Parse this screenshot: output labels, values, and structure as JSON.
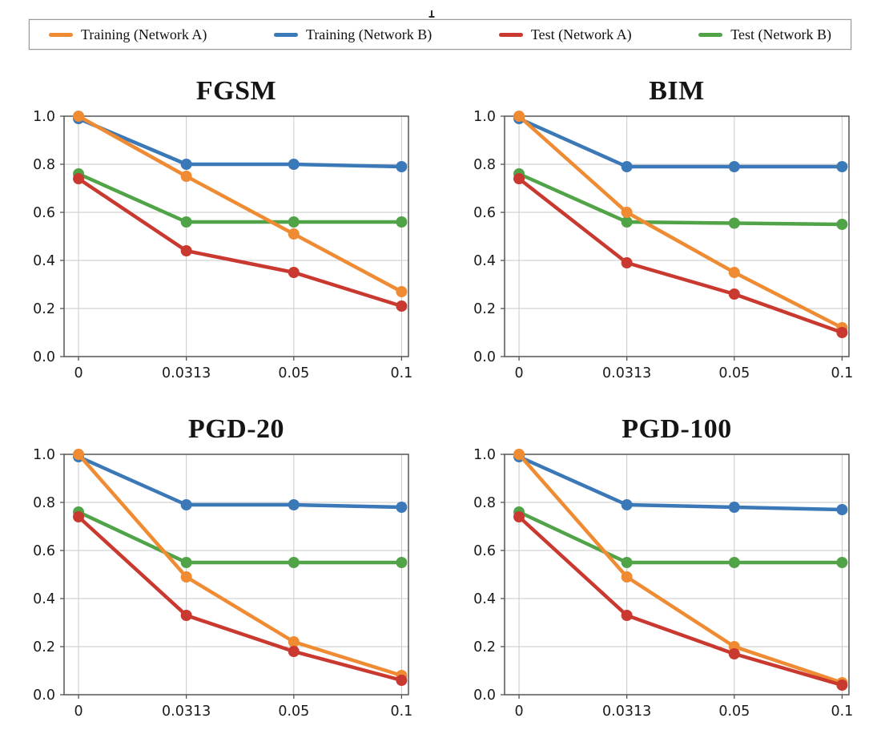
{
  "legend": {
    "position": "top",
    "items": [
      {
        "label": "Training (Network A)",
        "color": "#EE8B33"
      },
      {
        "label": "Training (Network B)",
        "color": "#3B78B7"
      },
      {
        "label": "Test (Network A)",
        "color": "#C9392F"
      },
      {
        "label": "Test (Network B)",
        "color": "#50A347"
      }
    ]
  },
  "chart_data": [
    {
      "type": "line",
      "title": "FGSM",
      "categories": [
        "0",
        "0.0313",
        "0.05",
        "0.1"
      ],
      "xlabel": "",
      "ylabel": "",
      "ylim": [
        0.0,
        1.0
      ],
      "yticklabels": [
        "0.0",
        "0.2",
        "0.4",
        "0.6",
        "0.8",
        "1.0"
      ],
      "grid": true,
      "legend_position": "shared-top",
      "series": [
        {
          "name": "Training (Network B)",
          "color": "#3B78B7",
          "values": [
            0.99,
            0.8,
            0.8,
            0.79
          ]
        },
        {
          "name": "Test (Network B)",
          "color": "#50A347",
          "values": [
            0.76,
            0.56,
            0.56,
            0.56
          ]
        },
        {
          "name": "Training (Network A)",
          "color": "#EE8B33",
          "values": [
            1.0,
            0.75,
            0.51,
            0.27
          ]
        },
        {
          "name": "Test (Network A)",
          "color": "#C9392F",
          "values": [
            0.74,
            0.44,
            0.35,
            0.21
          ]
        }
      ]
    },
    {
      "type": "line",
      "title": "BIM",
      "categories": [
        "0",
        "0.0313",
        "0.05",
        "0.1"
      ],
      "xlabel": "",
      "ylabel": "",
      "ylim": [
        0.0,
        1.0
      ],
      "yticklabels": [
        "0.0",
        "0.2",
        "0.4",
        "0.6",
        "0.8",
        "1.0"
      ],
      "grid": true,
      "legend_position": "shared-top",
      "series": [
        {
          "name": "Training (Network B)",
          "color": "#3B78B7",
          "values": [
            0.99,
            0.79,
            0.79,
            0.79
          ]
        },
        {
          "name": "Test (Network B)",
          "color": "#50A347",
          "values": [
            0.76,
            0.56,
            0.555,
            0.55
          ]
        },
        {
          "name": "Training (Network A)",
          "color": "#EE8B33",
          "values": [
            1.0,
            0.6,
            0.35,
            0.12
          ]
        },
        {
          "name": "Test (Network A)",
          "color": "#C9392F",
          "values": [
            0.74,
            0.39,
            0.26,
            0.1
          ]
        }
      ]
    },
    {
      "type": "line",
      "title": "PGD-20",
      "categories": [
        "0",
        "0.0313",
        "0.05",
        "0.1"
      ],
      "xlabel": "",
      "ylabel": "",
      "ylim": [
        0.0,
        1.0
      ],
      "yticklabels": [
        "0.0",
        "0.2",
        "0.4",
        "0.6",
        "0.8",
        "1.0"
      ],
      "grid": true,
      "legend_position": "shared-top",
      "series": [
        {
          "name": "Training (Network B)",
          "color": "#3B78B7",
          "values": [
            0.99,
            0.79,
            0.79,
            0.78
          ]
        },
        {
          "name": "Test (Network B)",
          "color": "#50A347",
          "values": [
            0.76,
            0.55,
            0.55,
            0.55
          ]
        },
        {
          "name": "Training (Network A)",
          "color": "#EE8B33",
          "values": [
            1.0,
            0.49,
            0.22,
            0.08
          ]
        },
        {
          "name": "Test (Network A)",
          "color": "#C9392F",
          "values": [
            0.74,
            0.33,
            0.18,
            0.06
          ]
        }
      ]
    },
    {
      "type": "line",
      "title": "PGD-100",
      "categories": [
        "0",
        "0.0313",
        "0.05",
        "0.1"
      ],
      "xlabel": "",
      "ylabel": "",
      "ylim": [
        0.0,
        1.0
      ],
      "yticklabels": [
        "0.0",
        "0.2",
        "0.4",
        "0.6",
        "0.8",
        "1.0"
      ],
      "grid": true,
      "legend_position": "shared-top",
      "series": [
        {
          "name": "Training (Network B)",
          "color": "#3B78B7",
          "values": [
            0.99,
            0.79,
            0.78,
            0.77
          ]
        },
        {
          "name": "Test (Network B)",
          "color": "#50A347",
          "values": [
            0.76,
            0.55,
            0.55,
            0.55
          ]
        },
        {
          "name": "Training (Network A)",
          "color": "#EE8B33",
          "values": [
            1.0,
            0.49,
            0.2,
            0.05
          ]
        },
        {
          "name": "Test (Network A)",
          "color": "#C9392F",
          "values": [
            0.74,
            0.33,
            0.17,
            0.04
          ]
        }
      ]
    }
  ],
  "style": {
    "grid_color": "#c9c9c9",
    "spine_color": "#555555",
    "tick_label_color": "#1a1a1a"
  }
}
